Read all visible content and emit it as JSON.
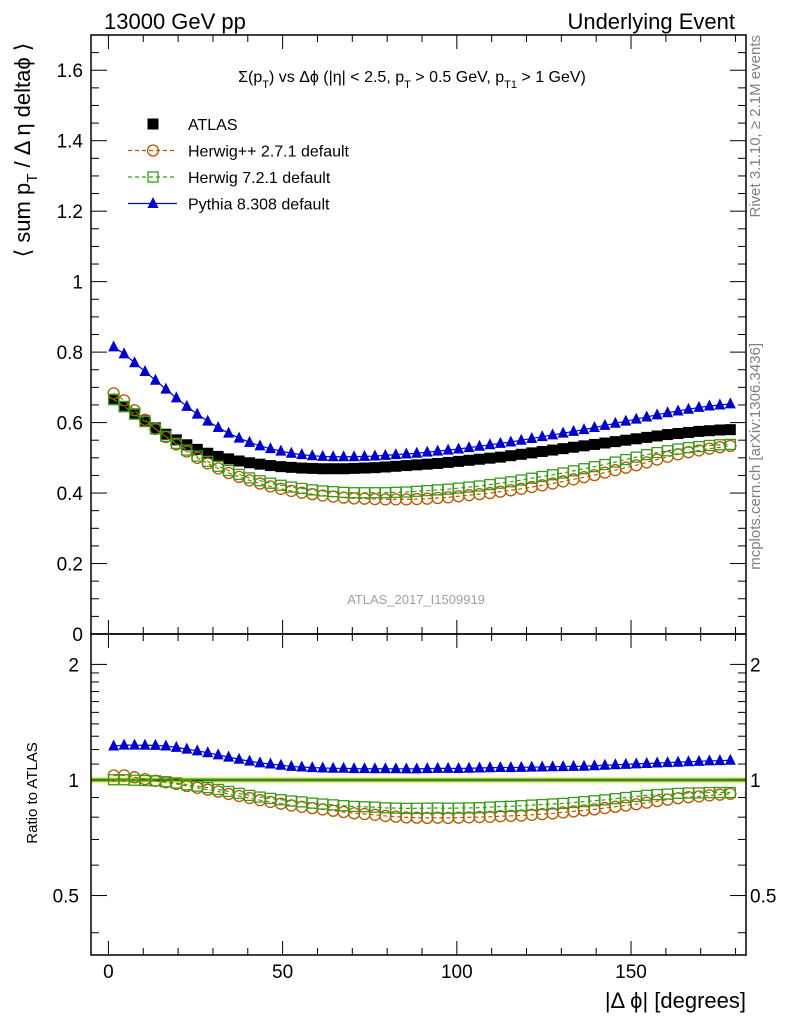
{
  "header": {
    "left": "13000 GeV pp",
    "right": "Underlying Event"
  },
  "plot_label": {
    "sigma": "Σ(p",
    "sigma_sub": "T",
    "mid1": ") vs Δϕ (|η| < 2.5, p",
    "pt_sub": "T",
    "mid2": " > 0.5 GeV, p",
    "pt1_sub": "T1",
    "end": " > 1 GeV)"
  },
  "ylabel_top": {
    "a": "⟨ sum p",
    "sub": "T",
    "b": " / Δ η deltaϕ ⟩"
  },
  "ylabel_bottom": "Ratio to ATLAS",
  "xlabel": "|Δ ϕ| [degrees]",
  "side_text": {
    "rivet": "Rivet 3.1.10, ≥ 2.1M events",
    "mcplots": "mcplots.cern.ch [arXiv:1306.3436]"
  },
  "watermark": "ATLAS_2017_I1509919",
  "legend": [
    {
      "label": "ATLAS",
      "color": "#000000",
      "marker": "square-filled"
    },
    {
      "label": "Herwig++ 2.7.1 default",
      "color": "#b05a00",
      "marker": "circle-open"
    },
    {
      "label": "Herwig 7.2.1 default",
      "color": "#3a9a1a",
      "marker": "square-open"
    },
    {
      "label": "Pythia 8.308 default",
      "color": "#0000cc",
      "marker": "triangle-filled"
    }
  ],
  "chart_data": {
    "type": "scatter",
    "x_unit": "degrees",
    "xlim": [
      -5,
      183
    ],
    "top": {
      "ylim": [
        0,
        1.7
      ],
      "yticks": [
        0.2,
        0.4,
        0.6,
        0.8,
        1,
        1.2,
        1.4,
        1.6
      ],
      "ytick_labels": [
        "0.2",
        "0.4",
        "0.6",
        "0.8",
        "1",
        "1.2",
        "1.4",
        "1.6"
      ],
      "bottom_tick_label": "0"
    },
    "bottom": {
      "ylim": [
        0.35,
        2.4
      ],
      "log_scale": true,
      "yticks": [
        0.5,
        1,
        2
      ],
      "ytick_labels": [
        "0.5",
        "1",
        "2"
      ]
    },
    "xticks": [
      0,
      50,
      100,
      150
    ],
    "xtick_labels": [
      "0",
      "50",
      "100",
      "150"
    ],
    "x": [
      1.5,
      4.5,
      7.5,
      10.5,
      13.5,
      16.5,
      19.5,
      22.5,
      25.5,
      28.5,
      31.5,
      34.5,
      37.5,
      40.5,
      43.5,
      46.5,
      49.5,
      52.5,
      55.5,
      58.5,
      61.5,
      64.5,
      67.5,
      70.5,
      73.5,
      76.5,
      79.5,
      82.5,
      85.5,
      88.5,
      91.5,
      94.5,
      97.5,
      100.5,
      103.5,
      106.5,
      109.5,
      112.5,
      115.5,
      118.5,
      121.5,
      124.5,
      127.5,
      130.5,
      133.5,
      136.5,
      139.5,
      142.5,
      145.5,
      148.5,
      151.5,
      154.5,
      157.5,
      160.5,
      163.5,
      166.5,
      169.5,
      172.5,
      175.5,
      178.5
    ],
    "series": [
      {
        "name": "ATLAS",
        "values": [
          0.665,
          0.645,
          0.625,
          0.605,
          0.585,
          0.567,
          0.551,
          0.537,
          0.524,
          0.513,
          0.504,
          0.497,
          0.491,
          0.486,
          0.482,
          0.478,
          0.475,
          0.473,
          0.471,
          0.47,
          0.469,
          0.469,
          0.469,
          0.47,
          0.471,
          0.472,
          0.474,
          0.476,
          0.478,
          0.48,
          0.482,
          0.484,
          0.487,
          0.49,
          0.493,
          0.496,
          0.499,
          0.502,
          0.506,
          0.51,
          0.514,
          0.518,
          0.522,
          0.526,
          0.53,
          0.534,
          0.538,
          0.542,
          0.546,
          0.55,
          0.554,
          0.558,
          0.562,
          0.566,
          0.569,
          0.572,
          0.575,
          0.577,
          0.579,
          0.58
        ]
      },
      {
        "name": "Herwig++ 2.7.1 default",
        "values": [
          0.683,
          0.663,
          0.635,
          0.608,
          0.582,
          0.559,
          0.538,
          0.518,
          0.5,
          0.484,
          0.47,
          0.457,
          0.446,
          0.436,
          0.427,
          0.419,
          0.412,
          0.406,
          0.401,
          0.397,
          0.393,
          0.39,
          0.387,
          0.385,
          0.384,
          0.383,
          0.382,
          0.382,
          0.382,
          0.383,
          0.384,
          0.386,
          0.388,
          0.391,
          0.394,
          0.397,
          0.4,
          0.404,
          0.408,
          0.412,
          0.417,
          0.422,
          0.427,
          0.433,
          0.439,
          0.445,
          0.451,
          0.458,
          0.465,
          0.472,
          0.479,
          0.487,
          0.495,
          0.503,
          0.51,
          0.516,
          0.521,
          0.526,
          0.53,
          0.534
        ]
      },
      {
        "name": "Herwig 7.2.1 default",
        "values": [
          0.666,
          0.646,
          0.624,
          0.603,
          0.582,
          0.561,
          0.541,
          0.522,
          0.505,
          0.49,
          0.476,
          0.464,
          0.453,
          0.443,
          0.435,
          0.428,
          0.422,
          0.417,
          0.413,
          0.409,
          0.406,
          0.404,
          0.402,
          0.401,
          0.401,
          0.401,
          0.401,
          0.402,
          0.403,
          0.405,
          0.407,
          0.409,
          0.411,
          0.414,
          0.417,
          0.42,
          0.424,
          0.428,
          0.432,
          0.437,
          0.442,
          0.447,
          0.452,
          0.457,
          0.463,
          0.469,
          0.475,
          0.481,
          0.488,
          0.495,
          0.502,
          0.509,
          0.515,
          0.52,
          0.525,
          0.529,
          0.532,
          0.535,
          0.537,
          0.538
        ]
      },
      {
        "name": "Pythia 8.308 default",
        "values": [
          0.815,
          0.795,
          0.77,
          0.745,
          0.72,
          0.695,
          0.67,
          0.646,
          0.624,
          0.604,
          0.586,
          0.57,
          0.556,
          0.544,
          0.534,
          0.526,
          0.519,
          0.513,
          0.509,
          0.506,
          0.504,
          0.503,
          0.503,
          0.503,
          0.504,
          0.505,
          0.507,
          0.509,
          0.511,
          0.513,
          0.516,
          0.519,
          0.522,
          0.525,
          0.529,
          0.533,
          0.537,
          0.541,
          0.545,
          0.55,
          0.555,
          0.56,
          0.565,
          0.57,
          0.575,
          0.58,
          0.586,
          0.592,
          0.598,
          0.604,
          0.61,
          0.616,
          0.622,
          0.628,
          0.633,
          0.638,
          0.643,
          0.647,
          0.65,
          0.653
        ]
      }
    ]
  }
}
